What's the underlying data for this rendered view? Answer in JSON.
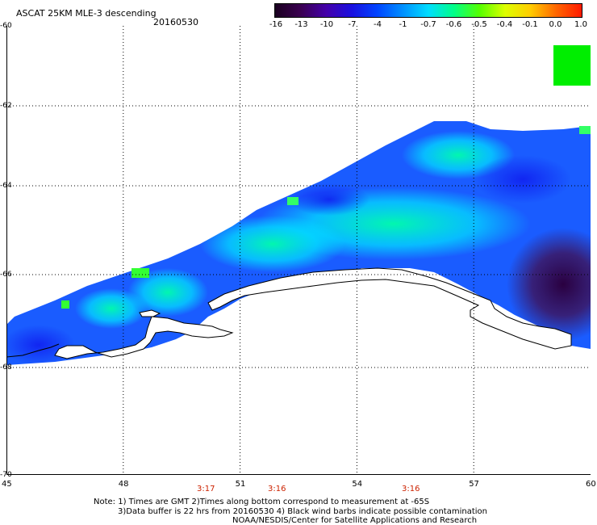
{
  "title": "ASCAT 25KM MLE-3 descending",
  "date": "20160530",
  "colorbar": {
    "labels": [
      "-16",
      "-13",
      "-10",
      "-7",
      "-4",
      "-1",
      "-0.7",
      "-0.6",
      "-0.5",
      "-0.4",
      "-0.1",
      "0.0",
      "1.0"
    ],
    "colors": [
      "#1a0020",
      "#3a0050",
      "#4400aa",
      "#1a10e0",
      "#0044ff",
      "#0090ff",
      "#00ddff",
      "#00ff88",
      "#55ff00",
      "#ddff00",
      "#ffcc00",
      "#ff6600",
      "#ff1a00"
    ]
  },
  "latitude_labels": [
    "-60",
    "-62",
    "-64",
    "-66",
    "-68",
    "-70"
  ],
  "longitude_labels": [
    "45",
    "48",
    "51",
    "54",
    "57",
    "60"
  ],
  "time_labels": [
    "3:17",
    "3:16",
    "3:16"
  ],
  "notes": {
    "line1": "Note: 1) Times are GMT 2)Times along bottom correspond to measurement at -65S",
    "line2": "3)Data buffer is 22 hrs from 20160530 4) Black wind barbs indicate possible contamination",
    "line3": "NOAA/NESDIS/Center for Satellite Applications and Research"
  }
}
